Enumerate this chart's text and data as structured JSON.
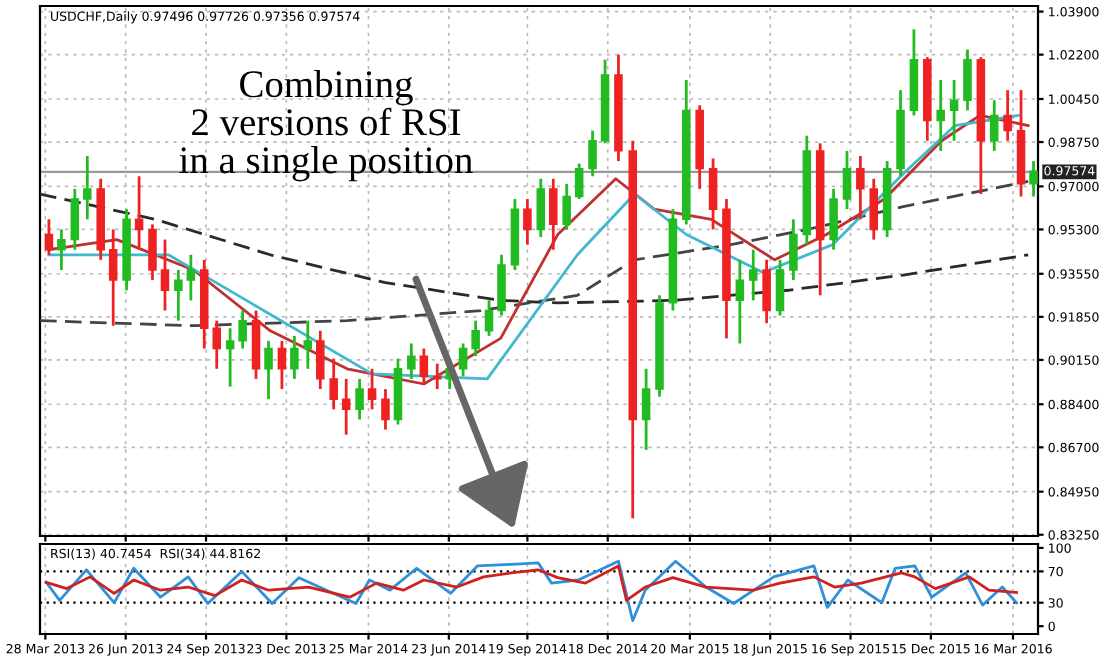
{
  "chart_data": [
    {
      "type": "candlestick",
      "title": "USDCHF,Daily 0.97496 0.97726 0.97356 0.97574",
      "annotations": [
        "Combining\n2 versions of RSI\nin a single position"
      ],
      "x": [
        "2013-04-01",
        "2013-04-15",
        "2013-04-30",
        "2013-05-14",
        "2013-05-29",
        "2013-06-12",
        "2013-06-27",
        "2013-07-11",
        "2013-07-26",
        "2013-08-09",
        "2013-08-24",
        "2013-09-07",
        "2013-09-22",
        "2013-10-06",
        "2013-10-21",
        "2013-11-04",
        "2013-11-19",
        "2013-12-03",
        "2013-12-18",
        "2014-01-01",
        "2014-01-16",
        "2014-01-30",
        "2014-02-14",
        "2014-02-28",
        "2014-03-15",
        "2014-03-29",
        "2014-04-13",
        "2014-04-27",
        "2014-05-12",
        "2014-05-26",
        "2014-06-10",
        "2014-06-24",
        "2014-07-09",
        "2014-07-23",
        "2014-08-07",
        "2014-08-21",
        "2014-09-05",
        "2014-09-19",
        "2014-10-04",
        "2014-10-18",
        "2014-11-02",
        "2014-11-16",
        "2014-12-01",
        "2014-12-15",
        "2014-12-30",
        "2015-01-15",
        "2015-01-30",
        "2015-02-14",
        "2015-03-01",
        "2015-03-16",
        "2015-03-31",
        "2015-04-15",
        "2015-04-30",
        "2015-05-15",
        "2015-05-30",
        "2015-06-14",
        "2015-06-29",
        "2015-07-14",
        "2015-07-29",
        "2015-08-13",
        "2015-08-28",
        "2015-09-12",
        "2015-09-27",
        "2015-10-12",
        "2015-10-27",
        "2015-11-11",
        "2015-11-26",
        "2015-12-11",
        "2015-12-26",
        "2016-01-10",
        "2016-01-25",
        "2016-02-09",
        "2016-02-24",
        "2016-03-10",
        "2016-03-25",
        "2016-04-08"
      ],
      "ohlc": [
        [
          0.951,
          0.957,
          0.943,
          0.945
        ],
        [
          0.945,
          0.953,
          0.937,
          0.949
        ],
        [
          0.949,
          0.969,
          0.945,
          0.965
        ],
        [
          0.965,
          0.982,
          0.957,
          0.969
        ],
        [
          0.969,
          0.973,
          0.941,
          0.945
        ],
        [
          0.945,
          0.953,
          0.915,
          0.933
        ],
        [
          0.933,
          0.961,
          0.929,
          0.957
        ],
        [
          0.957,
          0.974,
          0.945,
          0.953
        ],
        [
          0.953,
          0.955,
          0.933,
          0.937
        ],
        [
          0.937,
          0.949,
          0.921,
          0.929
        ],
        [
          0.929,
          0.937,
          0.917,
          0.933
        ],
        [
          0.933,
          0.943,
          0.925,
          0.937
        ],
        [
          0.937,
          0.941,
          0.906,
          0.914
        ],
        [
          0.914,
          0.917,
          0.898,
          0.906
        ],
        [
          0.906,
          0.914,
          0.891,
          0.909
        ],
        [
          0.909,
          0.921,
          0.906,
          0.917
        ],
        [
          0.917,
          0.921,
          0.894,
          0.898
        ],
        [
          0.898,
          0.909,
          0.886,
          0.906
        ],
        [
          0.906,
          0.909,
          0.89,
          0.898
        ],
        [
          0.898,
          0.911,
          0.894,
          0.906
        ],
        [
          0.906,
          0.917,
          0.898,
          0.909
        ],
        [
          0.909,
          0.913,
          0.89,
          0.894
        ],
        [
          0.894,
          0.902,
          0.882,
          0.886
        ],
        [
          0.886,
          0.894,
          0.872,
          0.882
        ],
        [
          0.882,
          0.894,
          0.878,
          0.89
        ],
        [
          0.89,
          0.898,
          0.882,
          0.886
        ],
        [
          0.886,
          0.89,
          0.874,
          0.878
        ],
        [
          0.878,
          0.902,
          0.876,
          0.898
        ],
        [
          0.898,
          0.908,
          0.894,
          0.903
        ],
        [
          0.903,
          0.906,
          0.892,
          0.895
        ],
        [
          0.895,
          0.9,
          0.89,
          0.894
        ],
        [
          0.894,
          0.9,
          0.89,
          0.898
        ],
        [
          0.898,
          0.908,
          0.895,
          0.906
        ],
        [
          0.906,
          0.917,
          0.903,
          0.913
        ],
        [
          0.913,
          0.925,
          0.911,
          0.921
        ],
        [
          0.921,
          0.943,
          0.919,
          0.939
        ],
        [
          0.939,
          0.965,
          0.937,
          0.961
        ],
        [
          0.961,
          0.965,
          0.947,
          0.953
        ],
        [
          0.953,
          0.973,
          0.95,
          0.969
        ],
        [
          0.969,
          0.973,
          0.945,
          0.955
        ],
        [
          0.955,
          0.971,
          0.953,
          0.966
        ],
        [
          0.966,
          0.979,
          0.965,
          0.977
        ],
        [
          0.977,
          0.992,
          0.974,
          0.988
        ],
        [
          0.988,
          1.02,
          0.987,
          1.014
        ],
        [
          1.014,
          1.022,
          0.98,
          0.984
        ],
        [
          0.984,
          0.988,
          0.839,
          0.878
        ],
        [
          0.878,
          0.898,
          0.866,
          0.89
        ],
        [
          0.89,
          0.927,
          0.887,
          0.924
        ],
        [
          0.924,
          0.961,
          0.921,
          0.957
        ],
        [
          0.957,
          1.012,
          0.955,
          1.0
        ],
        [
          1.0,
          1.002,
          0.969,
          0.977
        ],
        [
          0.977,
          0.981,
          0.953,
          0.961
        ],
        [
          0.961,
          0.965,
          0.91,
          0.925
        ],
        [
          0.925,
          0.941,
          0.908,
          0.933
        ],
        [
          0.933,
          0.945,
          0.925,
          0.937
        ],
        [
          0.937,
          0.941,
          0.916,
          0.921
        ],
        [
          0.921,
          0.941,
          0.919,
          0.937
        ],
        [
          0.937,
          0.957,
          0.933,
          0.951
        ],
        [
          0.951,
          0.99,
          0.947,
          0.984
        ],
        [
          0.984,
          0.987,
          0.927,
          0.949
        ],
        [
          0.949,
          0.969,
          0.945,
          0.965
        ],
        [
          0.965,
          0.984,
          0.961,
          0.977
        ],
        [
          0.977,
          0.982,
          0.957,
          0.969
        ],
        [
          0.969,
          0.973,
          0.949,
          0.953
        ],
        [
          0.953,
          0.98,
          0.95,
          0.977
        ],
        [
          0.977,
          1.008,
          0.974,
          1.0
        ],
        [
          1.0,
          1.032,
          0.998,
          1.02
        ],
        [
          1.02,
          1.021,
          0.988,
          0.996
        ],
        [
          0.996,
          1.012,
          0.984,
          1.0
        ],
        [
          1.0,
          1.012,
          0.988,
          1.004
        ],
        [
          1.004,
          1.024,
          1.0,
          1.02
        ],
        [
          1.02,
          1.021,
          0.967,
          0.988
        ],
        [
          0.988,
          1.004,
          0.984,
          0.998
        ],
        [
          0.998,
          1.008,
          0.988,
          0.992
        ],
        [
          0.992,
          1.008,
          0.966,
          0.971
        ],
        [
          0.971,
          0.98,
          0.966,
          0.976
        ]
      ],
      "colors": [
        "#ee2222",
        "#22bb22",
        "#22bb22",
        "#22bb22",
        "#ee2222",
        "#ee2222",
        "#22bb22",
        "#ee2222",
        "#ee2222",
        "#ee2222",
        "#22bb22",
        "#22bb22",
        "#ee2222",
        "#ee2222",
        "#22bb22",
        "#22bb22",
        "#ee2222",
        "#22bb22",
        "#ee2222",
        "#22bb22",
        "#22bb22",
        "#ee2222",
        "#ee2222",
        "#ee2222",
        "#22bb22",
        "#ee2222",
        "#ee2222",
        "#22bb22",
        "#22bb22",
        "#ee2222",
        "#ee2222",
        "#22bb22",
        "#22bb22",
        "#22bb22",
        "#22bb22",
        "#22bb22",
        "#22bb22",
        "#ee2222",
        "#22bb22",
        "#ee2222",
        "#22bb22",
        "#22bb22",
        "#22bb22",
        "#22bb22",
        "#ee2222",
        "#ee2222",
        "#22bb22",
        "#22bb22",
        "#22bb22",
        "#22bb22",
        "#ee2222",
        "#ee2222",
        "#ee2222",
        "#22bb22",
        "#22bb22",
        "#ee2222",
        "#22bb22",
        "#22bb22",
        "#22bb22",
        "#ee2222",
        "#22bb22",
        "#22bb22",
        "#ee2222",
        "#ee2222",
        "#22bb22",
        "#22bb22",
        "#22bb22",
        "#ee2222",
        "#22bb22",
        "#22bb22",
        "#22bb22",
        "#ee2222",
        "#22bb22",
        "#ee2222",
        "#ee2222",
        "#22bb22"
      ],
      "series": [
        {
          "type": "line",
          "color": "#2a2a2a",
          "line_style": "dashed",
          "x": [
            "2013-03-22",
            "2013-07-29",
            "2013-12-05",
            "2014-04-13",
            "2014-08-20",
            "2014-10-23",
            "2015-03-01",
            "2015-07-08",
            "2015-11-14",
            "2016-04-02"
          ],
          "values": [
            0.967,
            0.957,
            0.943,
            0.932,
            0.925,
            0.924,
            0.925,
            0.929,
            0.935,
            0.943
          ]
        },
        {
          "type": "line",
          "color": "#444444",
          "line_style": "dashed",
          "x": [
            "2013-03-22",
            "2013-09-10",
            "2014-03-01",
            "2014-07-29",
            "2014-11-14",
            "2015-01-17",
            "2015-05-05",
            "2015-07-30",
            "2015-11-14",
            "2016-04-02"
          ],
          "values": [
            0.917,
            0.915,
            0.917,
            0.921,
            0.927,
            0.941,
            0.947,
            0.953,
            0.962,
            0.972
          ]
        },
        {
          "type": "line",
          "color": "#c03030",
          "line_style": "solid",
          "x": [
            "2013-04-01",
            "2013-06-16",
            "2013-09-10",
            "2013-12-05",
            "2014-03-01",
            "2014-05-26",
            "2014-08-20",
            "2014-10-23",
            "2014-12-27",
            "2015-02-08",
            "2015-04-13",
            "2015-06-23",
            "2015-08-20",
            "2015-10-24",
            "2015-12-27",
            "2016-02-08",
            "2016-04-02"
          ],
          "values": [
            0.945,
            0.949,
            0.937,
            0.913,
            0.898,
            0.892,
            0.91,
            0.951,
            0.973,
            0.961,
            0.957,
            0.941,
            0.951,
            0.965,
            0.988,
            0.998,
            0.994
          ]
        },
        {
          "type": "line",
          "color": "#40b8d0",
          "line_style": "solid",
          "x": [
            "2013-04-01",
            "2013-08-13",
            "2013-11-13",
            "2014-03-29",
            "2014-08-05",
            "2014-11-14",
            "2015-01-17",
            "2015-03-16",
            "2015-06-10",
            "2015-08-27",
            "2015-11-14",
            "2016-01-11",
            "2016-03-22"
          ],
          "values": [
            0.943,
            0.943,
            0.924,
            0.896,
            0.894,
            0.943,
            0.967,
            0.951,
            0.936,
            0.947,
            0.975,
            0.994,
            0.998
          ]
        }
      ],
      "ref_lines": [
        {
          "axis": "y",
          "value": 0.97574,
          "label": "0.97574",
          "color": "#999999",
          "line_style": "solid"
        }
      ],
      "xlim": [
        "2013-03-22",
        "2016-04-13"
      ],
      "ylim": [
        0.832,
        1.0412
      ],
      "yticks": [
        {
          "value": 0.8325,
          "label": "0.83250"
        },
        {
          "value": 0.8495,
          "label": "0.84950"
        },
        {
          "value": 0.867,
          "label": "0.86700"
        },
        {
          "value": 0.884,
          "label": "0.88400"
        },
        {
          "value": 0.9015,
          "label": "0.90150"
        },
        {
          "value": 0.9185,
          "label": "0.91850"
        },
        {
          "value": 0.9355,
          "label": "0.93550"
        },
        {
          "value": 0.953,
          "label": "0.95300"
        },
        {
          "value": 0.97,
          "label": "0.97000"
        },
        {
          "value": 0.9875,
          "label": "0.98750"
        },
        {
          "value": 1.0045,
          "label": "1.00450"
        },
        {
          "value": 1.022,
          "label": "1.02200"
        },
        {
          "value": 1.039,
          "label": "1.03900"
        }
      ],
      "xticks": [
        {
          "value": "2013-03-28",
          "label": null
        },
        {
          "value": "2013-06-26",
          "label": null
        },
        {
          "value": "2013-09-24",
          "label": null
        },
        {
          "value": "2013-12-23",
          "label": null
        },
        {
          "value": "2014-03-25",
          "label": null
        },
        {
          "value": "2014-06-23",
          "label": null
        },
        {
          "value": "2014-09-19",
          "label": null
        },
        {
          "value": "2014-12-18",
          "label": null
        },
        {
          "value": "2015-03-20",
          "label": null
        },
        {
          "value": "2015-06-18",
          "label": null
        },
        {
          "value": "2015-09-16",
          "label": null
        },
        {
          "value": "2015-12-15",
          "label": null
        },
        {
          "value": "2016-03-16",
          "label": null
        }
      ],
      "tick_labels": "y",
      "grid": true,
      "legend": false
    },
    {
      "type": "line",
      "title": "RSI(13) 40.7454  RSI(34) 44.8162",
      "series": [
        {
          "color": "#2f8fd8",
          "x": [
            "2013-03-29",
            "2013-04-13",
            "2013-05-13",
            "2013-06-13",
            "2013-07-05",
            "2013-08-04",
            "2013-09-04",
            "2013-09-26",
            "2013-11-03",
            "2013-12-07",
            "2014-01-06",
            "2014-03-11",
            "2014-03-26",
            "2014-04-18",
            "2014-05-18",
            "2014-06-25",
            "2014-07-25",
            "2014-09-01",
            "2014-10-01",
            "2014-10-16",
            "2014-11-15",
            "2014-12-30",
            "2015-01-15",
            "2015-01-29",
            "2015-03-04",
            "2015-04-07",
            "2015-05-08",
            "2015-06-22",
            "2015-08-06",
            "2015-08-21",
            "2015-09-13",
            "2015-10-21",
            "2015-11-05",
            "2015-11-27",
            "2015-12-16",
            "2016-01-23",
            "2016-02-11",
            "2016-03-04",
            "2016-03-20"
          ],
          "values": [
            56,
            33,
            72,
            30,
            74,
            37,
            63,
            29,
            70,
            29,
            62,
            29,
            59,
            46,
            74,
            42,
            77,
            79,
            81,
            55,
            59,
            83,
            7,
            46,
            83,
            50,
            29,
            63,
            77,
            24,
            59,
            30,
            74,
            77,
            37,
            68,
            27,
            50,
            30
          ]
        },
        {
          "color": "#d02020",
          "x": [
            "2013-03-29",
            "2013-04-21",
            "2013-05-17",
            "2013-06-13",
            "2013-07-05",
            "2013-08-04",
            "2013-09-04",
            "2013-10-04",
            "2013-11-03",
            "2013-12-03",
            "2014-01-17",
            "2014-03-04",
            "2014-04-03",
            "2014-05-03",
            "2014-05-26",
            "2014-07-02",
            "2014-08-01",
            "2014-09-01",
            "2014-10-01",
            "2014-10-23",
            "2014-11-23",
            "2014-12-30",
            "2015-01-08",
            "2015-01-29",
            "2015-03-01",
            "2015-04-07",
            "2015-05-30",
            "2015-06-29",
            "2015-08-06",
            "2015-08-29",
            "2015-09-28",
            "2015-11-12",
            "2015-11-27",
            "2015-12-20",
            "2016-01-27",
            "2016-02-18",
            "2016-03-20"
          ],
          "values": [
            56,
            48,
            63,
            42,
            59,
            46,
            50,
            39,
            59,
            46,
            50,
            37,
            55,
            46,
            59,
            50,
            63,
            68,
            72,
            62,
            55,
            77,
            33,
            50,
            62,
            50,
            46,
            55,
            63,
            50,
            55,
            68,
            63,
            48,
            63,
            46,
            43
          ]
        }
      ],
      "ref_lines": [
        {
          "axis": "y",
          "value": 30,
          "color": "#000000",
          "line_style": "dotted"
        },
        {
          "axis": "y",
          "value": 70,
          "color": "#000000",
          "line_style": "dotted"
        }
      ],
      "xlim": [
        "2013-03-22",
        "2016-04-13"
      ],
      "ylim": [
        -10,
        105
      ],
      "yticks": [
        0,
        30,
        70,
        100
      ],
      "xticks": [
        {
          "value": "2013-03-28",
          "label": "28 Mar 2013"
        },
        {
          "value": "2013-06-26",
          "label": "26 Jun 2013"
        },
        {
          "value": "2013-09-24",
          "label": "24 Sep 2013"
        },
        {
          "value": "2013-12-23",
          "label": "23 Dec 2013"
        },
        {
          "value": "2014-03-25",
          "label": "25 Mar 2014"
        },
        {
          "value": "2014-06-23",
          "label": "23 Jun 2014"
        },
        {
          "value": "2014-09-19",
          "label": "19 Sep 2014"
        },
        {
          "value": "2014-12-18",
          "label": "18 Dec 2014"
        },
        {
          "value": "2015-03-20",
          "label": "20 Mar 2015"
        },
        {
          "value": "2015-06-18",
          "label": "18 Jun 2015"
        },
        {
          "value": "2015-09-16",
          "label": "16 Sep 2015"
        },
        {
          "value": "2015-12-15",
          "label": "15 Dec 2015"
        },
        {
          "value": "2016-03-16",
          "label": "16 Mar 2016"
        }
      ],
      "grid": "x",
      "legend": false
    }
  ]
}
